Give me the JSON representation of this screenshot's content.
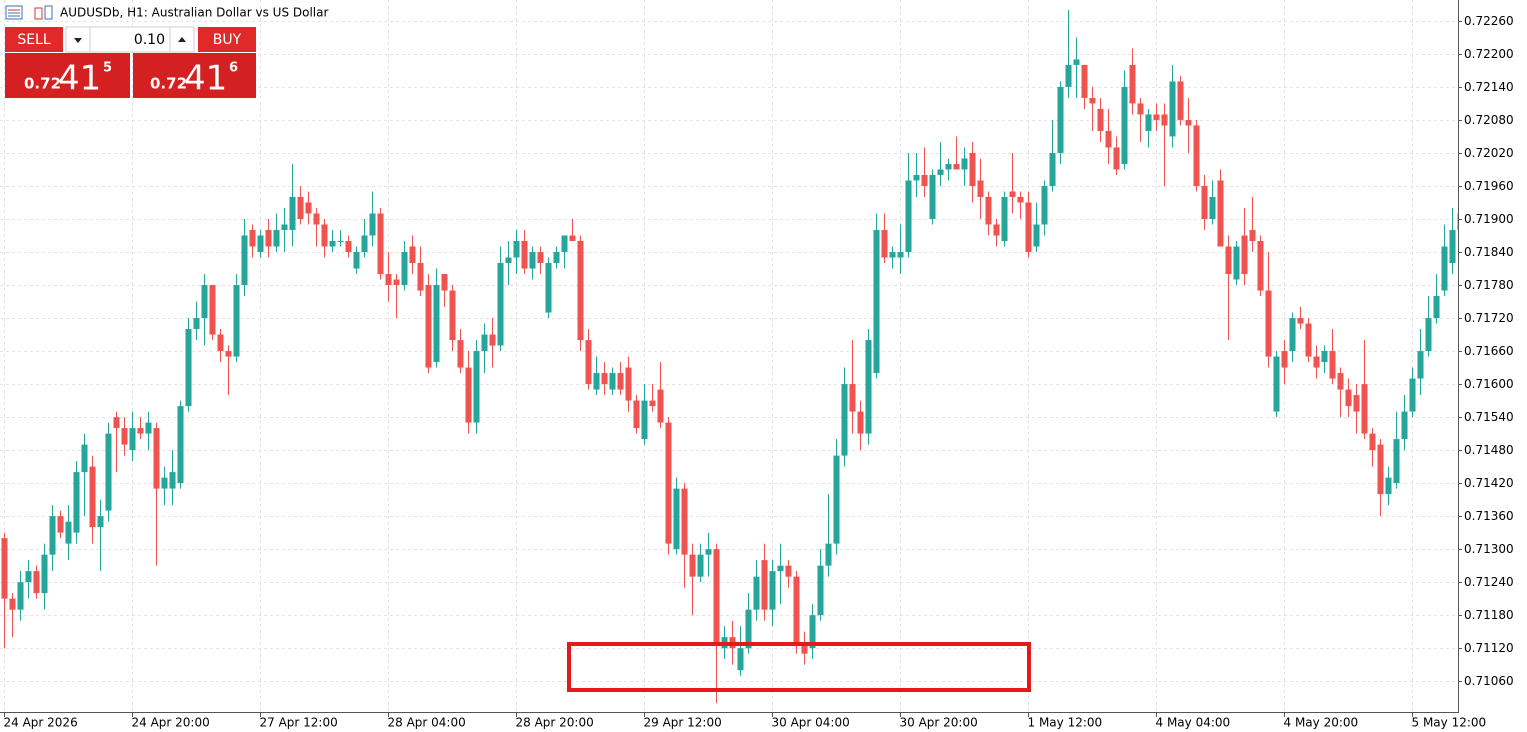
{
  "chart_data": {
    "type": "candlestick",
    "title": "AUDUSDb, H1:  Australian Dollar vs US Dollar",
    "categories": [
      "24 Apr 2026",
      null,
      null,
      null,
      null,
      null,
      null,
      null,
      null,
      null,
      null,
      null,
      null,
      null,
      null,
      null,
      "24 Apr 20:00",
      null,
      null,
      null,
      null,
      null,
      null,
      null,
      null,
      null,
      null,
      null,
      null,
      null,
      null,
      null,
      "27 Apr 12:00",
      null,
      null,
      null,
      null,
      null,
      null,
      null,
      null,
      null,
      null,
      null,
      null,
      null,
      null,
      null,
      "28 Apr 04:00",
      null,
      null,
      null,
      null,
      null,
      null,
      null,
      null,
      null,
      null,
      null,
      null,
      null,
      null,
      null,
      "28 Apr 20:00",
      null,
      null,
      null,
      null,
      null,
      null,
      null,
      null,
      null,
      null,
      null,
      null,
      null,
      null,
      null,
      "29 Apr 12:00",
      null,
      null,
      null,
      null,
      null,
      null,
      null,
      null,
      null,
      null,
      null,
      null,
      null,
      null,
      null,
      "30 Apr 04:00",
      null,
      null,
      null,
      null,
      null,
      null,
      null,
      null,
      null,
      null,
      null,
      null,
      null,
      null,
      null,
      "30 Apr 20:00",
      null,
      null,
      null,
      null,
      null,
      null,
      null,
      null,
      null,
      null,
      null,
      null,
      null,
      null,
      null,
      "1 May 12:00",
      null,
      null,
      null,
      null,
      null,
      null,
      null,
      null,
      null,
      null,
      null,
      null,
      null,
      null,
      null,
      "4 May 04:00",
      null,
      null,
      null,
      null,
      null,
      null,
      null,
      null,
      null,
      null,
      null,
      null,
      null,
      null,
      null,
      "4 May 20:00",
      null,
      null,
      null,
      null,
      null,
      null,
      null,
      null,
      null,
      null,
      null,
      null,
      null,
      null,
      null,
      "5 May 12:00",
      null,
      null,
      null,
      null,
      null,
      null
    ],
    "open": [
      0.7132,
      0.7121,
      0.7119,
      0.7124,
      0.7126,
      0.7122,
      0.7129,
      0.7136,
      0.7131,
      0.7133,
      0.7144,
      0.7145,
      0.7134,
      0.7137,
      0.7154,
      0.7152,
      0.7148,
      0.7152,
      0.7151,
      0.7152,
      0.7141,
      0.7141,
      0.7142,
      0.7156,
      0.717,
      0.7172,
      0.7178,
      0.7169,
      0.7166,
      0.7165,
      0.7178,
      0.7188,
      0.7184,
      0.7188,
      0.7185,
      0.7188,
      0.7188,
      0.7194,
      0.7193,
      0.7191,
      0.7189,
      0.7185,
      0.7186,
      0.7186,
      0.7181,
      0.7184,
      0.7187,
      0.7191,
      0.718,
      0.7179,
      0.7178,
      0.7185,
      0.7182,
      0.7178,
      0.7164,
      0.718,
      0.7177,
      0.7168,
      0.7163,
      0.7153,
      0.7166,
      0.7169,
      0.7167,
      0.7182,
      0.7183,
      0.7186,
      0.7181,
      0.7184,
      0.7173,
      0.7182,
      0.7184,
      0.7187,
      0.7186,
      0.7168,
      0.7159,
      0.7162,
      0.7159,
      0.7162,
      0.7163,
      0.7157,
      0.715,
      0.7157,
      0.7159,
      0.7153,
      0.713,
      0.7141,
      0.7129,
      0.7125,
      0.7129,
      0.713,
      0.7112,
      0.7114,
      0.7108,
      0.7112,
      0.7119,
      0.7128,
      0.7119,
      0.7126,
      0.7127,
      0.7125,
      0.7113,
      0.7112,
      0.7118,
      0.7127,
      0.7131,
      0.7147,
      0.716,
      0.7155,
      0.7151,
      0.7162,
      0.7188,
      0.7183,
      0.7183,
      0.7184,
      0.7197,
      0.7198,
      0.719,
      0.7198,
      0.7199,
      0.72,
      0.7199,
      0.7202,
      0.7197,
      0.7194,
      0.7189,
      0.7186,
      0.7195,
      0.7194,
      0.7193,
      0.7185,
      0.7189,
      0.7196,
      0.7202,
      0.7214,
      0.7218,
      0.7218,
      0.7212,
      0.721,
      0.7206,
      0.7203,
      0.72,
      0.7218,
      0.7211,
      0.7206,
      0.7209,
      0.7209,
      0.7205,
      0.7215,
      0.7208,
      0.7207,
      0.7196,
      0.719,
      0.7197,
      0.7185,
      0.7179,
      0.7187,
      0.7188,
      0.7186,
      0.7177,
      0.7155,
      0.7166,
      0.7166,
      0.7172,
      0.7171,
      0.7165,
      0.7164,
      0.7166,
      0.7162,
      0.7159,
      0.7158,
      0.716,
      0.7151,
      0.7149,
      0.714,
      0.7142,
      0.715,
      0.7155,
      0.7161,
      0.7166,
      0.7172,
      0.7177,
      0.7182,
      0.7188
    ],
    "high": [
      0.7133,
      0.7122,
      0.7126,
      0.7128,
      0.7127,
      0.7131,
      0.7138,
      0.7137,
      0.7138,
      0.7146,
      0.7151,
      0.7147,
      0.7139,
      0.7153,
      0.7155,
      0.7154,
      0.7155,
      0.7154,
      0.7155,
      0.7153,
      0.7145,
      0.7148,
      0.7157,
      0.7172,
      0.7175,
      0.718,
      0.7178,
      0.717,
      0.7167,
      0.718,
      0.719,
      0.7189,
      0.7188,
      0.719,
      0.7191,
      0.7192,
      0.72,
      0.7196,
      0.7195,
      0.7192,
      0.719,
      0.7188,
      0.7188,
      0.7187,
      0.7185,
      0.719,
      0.7195,
      0.7192,
      0.7184,
      0.718,
      0.7186,
      0.7187,
      0.7185,
      0.718,
      0.7181,
      0.718,
      0.7178,
      0.717,
      0.7166,
      0.7168,
      0.7171,
      0.7172,
      0.7185,
      0.7186,
      0.7188,
      0.7188,
      0.7185,
      0.7185,
      0.7183,
      0.7185,
      0.7187,
      0.719,
      0.7187,
      0.717,
      0.7165,
      0.7164,
      0.7163,
      0.7164,
      0.7165,
      0.7158,
      0.716,
      0.716,
      0.7164,
      0.7154,
      0.7143,
      0.7142,
      0.7131,
      0.7131,
      0.7133,
      0.7131,
      0.7116,
      0.7117,
      0.7116,
      0.7122,
      0.7128,
      0.7131,
      0.7128,
      0.7131,
      0.7128,
      0.7126,
      0.7115,
      0.712,
      0.713,
      0.714,
      0.715,
      0.7163,
      0.7168,
      0.7157,
      0.717,
      0.7191,
      0.7191,
      0.7185,
      0.7189,
      0.7202,
      0.7202,
      0.7203,
      0.7199,
      0.7204,
      0.7201,
      0.7205,
      0.7203,
      0.7204,
      0.7201,
      0.7195,
      0.719,
      0.7195,
      0.7202,
      0.7195,
      0.7195,
      0.7193,
      0.7197,
      0.7208,
      0.7215,
      0.7228,
      0.7223,
      0.7218,
      0.7214,
      0.7212,
      0.721,
      0.7205,
      0.7217,
      0.7221,
      0.7212,
      0.721,
      0.7211,
      0.7211,
      0.7218,
      0.7216,
      0.7212,
      0.7208,
      0.7198,
      0.7197,
      0.7199,
      0.7187,
      0.7186,
      0.7192,
      0.7194,
      0.7187,
      0.7184,
      0.7166,
      0.7168,
      0.7173,
      0.7174,
      0.7172,
      0.7167,
      0.7167,
      0.717,
      0.7163,
      0.7161,
      0.716,
      0.7168,
      0.7152,
      0.715,
      0.7145,
      0.7155,
      0.7158,
      0.7163,
      0.717,
      0.7176,
      0.718,
      0.7189,
      0.7192,
      0.7198
    ],
    "low": [
      0.7112,
      0.7114,
      0.7117,
      0.7121,
      0.7121,
      0.7119,
      0.7126,
      0.7132,
      0.7128,
      0.7131,
      0.7136,
      0.7131,
      0.7126,
      0.7135,
      0.7144,
      0.7147,
      0.7146,
      0.715,
      0.7148,
      0.7127,
      0.7138,
      0.7138,
      0.7141,
      0.7155,
      0.7168,
      0.7167,
      0.7168,
      0.7164,
      0.7158,
      0.7164,
      0.7176,
      0.7183,
      0.7183,
      0.7183,
      0.7184,
      0.7184,
      0.7185,
      0.7189,
      0.7189,
      0.7185,
      0.7183,
      0.7184,
      0.7185,
      0.7183,
      0.718,
      0.7183,
      0.7185,
      0.7179,
      0.7175,
      0.7172,
      0.7177,
      0.718,
      0.7176,
      0.7162,
      0.7163,
      0.7174,
      0.7166,
      0.7162,
      0.7151,
      0.7151,
      0.7162,
      0.7163,
      0.7166,
      0.7178,
      0.718,
      0.718,
      0.7179,
      0.718,
      0.7172,
      0.7181,
      0.7181,
      0.7186,
      0.7166,
      0.7159,
      0.7158,
      0.7158,
      0.7158,
      0.7158,
      0.7155,
      0.7151,
      0.7149,
      0.7155,
      0.7152,
      0.7129,
      0.7129,
      0.7123,
      0.7118,
      0.7124,
      0.7125,
      0.7102,
      0.711,
      0.7109,
      0.7107,
      0.7111,
      0.7117,
      0.7117,
      0.7116,
      0.712,
      0.7123,
      0.7111,
      0.7109,
      0.711,
      0.7117,
      0.7125,
      0.7129,
      0.7145,
      0.7151,
      0.7148,
      0.7149,
      0.7161,
      0.7182,
      0.7181,
      0.718,
      0.7183,
      0.7194,
      0.7194,
      0.7189,
      0.7196,
      0.7197,
      0.7199,
      0.7196,
      0.7193,
      0.719,
      0.7187,
      0.7185,
      0.7185,
      0.7191,
      0.719,
      0.7183,
      0.7184,
      0.7187,
      0.7195,
      0.72,
      0.7212,
      0.7212,
      0.721,
      0.7206,
      0.7204,
      0.72,
      0.7198,
      0.7199,
      0.7209,
      0.7204,
      0.7203,
      0.7206,
      0.7196,
      0.7203,
      0.7207,
      0.7202,
      0.7195,
      0.7188,
      0.7189,
      0.7185,
      0.7168,
      0.7178,
      0.7178,
      0.7184,
      0.7176,
      0.7163,
      0.7154,
      0.716,
      0.7164,
      0.717,
      0.7164,
      0.7161,
      0.7162,
      0.716,
      0.7154,
      0.7154,
      0.7151,
      0.715,
      0.7145,
      0.7136,
      0.7138,
      0.7141,
      0.7148,
      0.7154,
      0.7158,
      0.7165,
      0.7171,
      0.7176,
      0.718,
      0.7186
    ],
    "close": [
      0.7121,
      0.7119,
      0.7124,
      0.7126,
      0.7122,
      0.7129,
      0.7136,
      0.7133,
      0.7135,
      0.7144,
      0.7149,
      0.7134,
      0.7136,
      0.7151,
      0.7152,
      0.7149,
      0.7152,
      0.7151,
      0.7153,
      0.7141,
      0.7143,
      0.7144,
      0.7156,
      0.717,
      0.7172,
      0.7178,
      0.7169,
      0.7166,
      0.7165,
      0.7178,
      0.7187,
      0.7185,
      0.7187,
      0.7185,
      0.7188,
      0.7189,
      0.7194,
      0.719,
      0.7191,
      0.7189,
      0.7185,
      0.7186,
      0.7186,
      0.7184,
      0.7184,
      0.7187,
      0.7191,
      0.718,
      0.7178,
      0.7178,
      0.7184,
      0.7182,
      0.7177,
      0.7163,
      0.7178,
      0.7177,
      0.7168,
      0.7163,
      0.7153,
      0.7166,
      0.7169,
      0.7167,
      0.7182,
      0.7183,
      0.7186,
      0.7181,
      0.7184,
      0.7182,
      0.7182,
      0.7184,
      0.7187,
      0.7186,
      0.7168,
      0.716,
      0.7162,
      0.716,
      0.7162,
      0.7159,
      0.7157,
      0.7152,
      0.7157,
      0.7156,
      0.7153,
      0.7131,
      0.7141,
      0.7129,
      0.7125,
      0.7129,
      0.713,
      0.7113,
      0.7114,
      0.7112,
      0.7112,
      0.7119,
      0.7125,
      0.7119,
      0.7126,
      0.7127,
      0.7125,
      0.7113,
      0.7111,
      0.7118,
      0.7127,
      0.7131,
      0.7147,
      0.716,
      0.7155,
      0.7151,
      0.7168,
      0.7188,
      0.7183,
      0.7184,
      0.7184,
      0.7197,
      0.7198,
      0.7196,
      0.7198,
      0.7199,
      0.72,
      0.7199,
      0.7201,
      0.7196,
      0.7194,
      0.7189,
      0.7187,
      0.7194,
      0.7194,
      0.7193,
      0.7184,
      0.7189,
      0.7196,
      0.7202,
      0.7214,
      0.7218,
      0.7219,
      0.7212,
      0.7211,
      0.7206,
      0.7203,
      0.7199,
      0.7214,
      0.7211,
      0.7209,
      0.7209,
      0.7208,
      0.7207,
      0.7215,
      0.7208,
      0.7207,
      0.7196,
      0.719,
      0.7194,
      0.7185,
      0.718,
      0.7185,
      0.718,
      0.7186,
      0.7177,
      0.7165,
      0.7165,
      0.7163,
      0.7172,
      0.7171,
      0.7165,
      0.7163,
      0.7166,
      0.7161,
      0.7159,
      0.7156,
      0.7155,
      0.7151,
      0.7148,
      0.714,
      0.7143,
      0.715,
      0.7155,
      0.7161,
      0.7166,
      0.7172,
      0.7176,
      0.7185,
      0.7188,
      0.7191
    ],
    "up_color": "#26a69a",
    "down_color": "#ef5350",
    "ylim": [
      0.71004,
      0.72298
    ],
    "yticks": [
      {
        "value": 0.7106,
        "label": "0.71060"
      },
      {
        "value": 0.7112,
        "label": "0.71120"
      },
      {
        "value": 0.7118,
        "label": "0.71180"
      },
      {
        "value": 0.7124,
        "label": "0.71240"
      },
      {
        "value": 0.713,
        "label": "0.71300"
      },
      {
        "value": 0.7136,
        "label": "0.71360"
      },
      {
        "value": 0.7142,
        "label": "0.71420"
      },
      {
        "value": 0.7148,
        "label": "0.71480"
      },
      {
        "value": 0.7154,
        "label": "0.71540"
      },
      {
        "value": 0.716,
        "label": "0.71600"
      },
      {
        "value": 0.7166,
        "label": "0.71660"
      },
      {
        "value": 0.7172,
        "label": "0.71720"
      },
      {
        "value": 0.7178,
        "label": "0.71780"
      },
      {
        "value": 0.7184,
        "label": "0.71840"
      },
      {
        "value": 0.719,
        "label": "0.71900"
      },
      {
        "value": 0.7196,
        "label": "0.71960"
      },
      {
        "value": 0.7202,
        "label": "0.72020"
      },
      {
        "value": 0.7208,
        "label": "0.72080"
      },
      {
        "value": 0.7214,
        "label": "0.72140"
      },
      {
        "value": 0.722,
        "label": "0.72200"
      },
      {
        "value": 0.7226,
        "label": "0.72260"
      }
    ],
    "grid": true
  },
  "trade_panel": {
    "sell": "SELL",
    "buy": "BUY",
    "lot": "0.10",
    "bid": {
      "prefix": "0.72",
      "pips": "41",
      "point": "5"
    },
    "ask": {
      "prefix": "0.72",
      "pips": "41",
      "point": "6"
    }
  }
}
